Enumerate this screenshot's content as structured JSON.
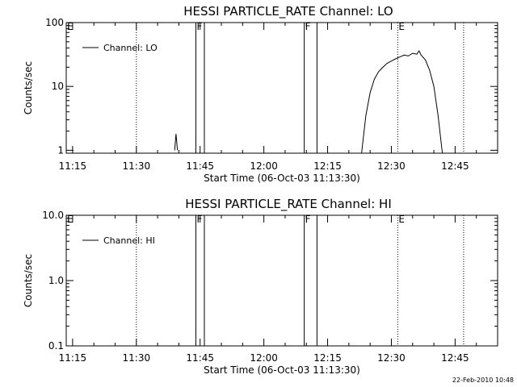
{
  "footer_timestamp": "22-Feb-2010 10:48",
  "chart_data": [
    {
      "type": "line",
      "title": "HESSI PARTICLE_RATE Channel: LO",
      "ylabel": "Counts/sec",
      "xlabel": "Start Time (06-Oct-03 11:13:30)",
      "yscale": "log",
      "ylim": [
        0.9,
        100
      ],
      "y_ticks": [
        {
          "v": 1,
          "label": "1"
        },
        {
          "v": 10,
          "label": "10"
        },
        {
          "v": 100,
          "label": "100"
        }
      ],
      "xlim": [
        "11:13:30",
        "12:55:00"
      ],
      "x_ticks": [
        {
          "t": "11:15",
          "label": "11:15"
        },
        {
          "t": "11:30",
          "label": "11:30"
        },
        {
          "t": "11:45",
          "label": "11:45"
        },
        {
          "t": "12:00",
          "label": "12:00"
        },
        {
          "t": "12:15",
          "label": "12:15"
        },
        {
          "t": "12:30",
          "label": "12:30"
        },
        {
          "t": "12:45",
          "label": "12:45"
        }
      ],
      "legend": {
        "label": "Channel: LO",
        "position": "top-left"
      },
      "markers_solid": [
        {
          "t": "11:44:00",
          "label": "F"
        },
        {
          "t": "11:46:00",
          "label": ""
        },
        {
          "t": "12:09:30",
          "label": "F"
        },
        {
          "t": "12:12:30",
          "label": ""
        }
      ],
      "markers_dotted": [
        {
          "t": "11:13:30",
          "label": "E"
        },
        {
          "t": "11:30:00",
          "label": ""
        },
        {
          "t": "12:31:30",
          "label": "E"
        },
        {
          "t": "12:47:00",
          "label": ""
        }
      ],
      "series": [
        {
          "name": "Channel: LO",
          "segments": [
            [
              {
                "t": "11:39:00",
                "y": 1.0
              },
              {
                "t": "11:39:20",
                "y": 1.8
              },
              {
                "t": "11:39:40",
                "y": 1.0
              }
            ],
            [
              {
                "t": "12:23:00",
                "y": 0.9
              },
              {
                "t": "12:24:00",
                "y": 3.5
              },
              {
                "t": "12:25:00",
                "y": 8.0
              },
              {
                "t": "12:26:00",
                "y": 13
              },
              {
                "t": "12:27:00",
                "y": 17
              },
              {
                "t": "12:28:00",
                "y": 20
              },
              {
                "t": "12:29:00",
                "y": 23
              },
              {
                "t": "12:30:00",
                "y": 25
              },
              {
                "t": "12:31:00",
                "y": 27
              },
              {
                "t": "12:32:00",
                "y": 29
              },
              {
                "t": "12:33:00",
                "y": 31
              },
              {
                "t": "12:34:00",
                "y": 30
              },
              {
                "t": "12:35:00",
                "y": 33
              },
              {
                "t": "12:36:00",
                "y": 32
              },
              {
                "t": "12:36:30",
                "y": 36
              },
              {
                "t": "12:37:00",
                "y": 31
              },
              {
                "t": "12:38:00",
                "y": 26
              },
              {
                "t": "12:39:00",
                "y": 18
              },
              {
                "t": "12:40:00",
                "y": 10
              },
              {
                "t": "12:41:00",
                "y": 3.5
              },
              {
                "t": "12:42:00",
                "y": 0.9
              }
            ]
          ]
        }
      ]
    },
    {
      "type": "line",
      "title": "HESSI PARTICLE_RATE Channel: HI",
      "ylabel": "Counts/sec",
      "xlabel": "Start Time (06-Oct-03 11:13:30)",
      "yscale": "log",
      "ylim": [
        0.1,
        10
      ],
      "y_ticks": [
        {
          "v": 0.1,
          "label": "0.1"
        },
        {
          "v": 1,
          "label": "1.0"
        },
        {
          "v": 10,
          "label": "10.0"
        }
      ],
      "xlim": [
        "11:13:30",
        "12:55:00"
      ],
      "x_ticks": [
        {
          "t": "11:15",
          "label": "11:15"
        },
        {
          "t": "11:30",
          "label": "11:30"
        },
        {
          "t": "11:45",
          "label": "11:45"
        },
        {
          "t": "12:00",
          "label": "12:00"
        },
        {
          "t": "12:15",
          "label": "12:15"
        },
        {
          "t": "12:30",
          "label": "12:30"
        },
        {
          "t": "12:45",
          "label": "12:45"
        }
      ],
      "legend": {
        "label": "Channel: HI",
        "position": "top-left"
      },
      "markers_solid": [
        {
          "t": "11:44:00",
          "label": "F"
        },
        {
          "t": "11:46:00",
          "label": ""
        },
        {
          "t": "12:09:30",
          "label": "F"
        },
        {
          "t": "12:12:30",
          "label": ""
        }
      ],
      "markers_dotted": [
        {
          "t": "11:13:30",
          "label": "E"
        },
        {
          "t": "11:30:00",
          "label": ""
        },
        {
          "t": "12:31:30",
          "label": "E"
        },
        {
          "t": "12:47:00",
          "label": ""
        }
      ],
      "series": [
        {
          "name": "Channel: HI",
          "segments": []
        }
      ]
    }
  ]
}
